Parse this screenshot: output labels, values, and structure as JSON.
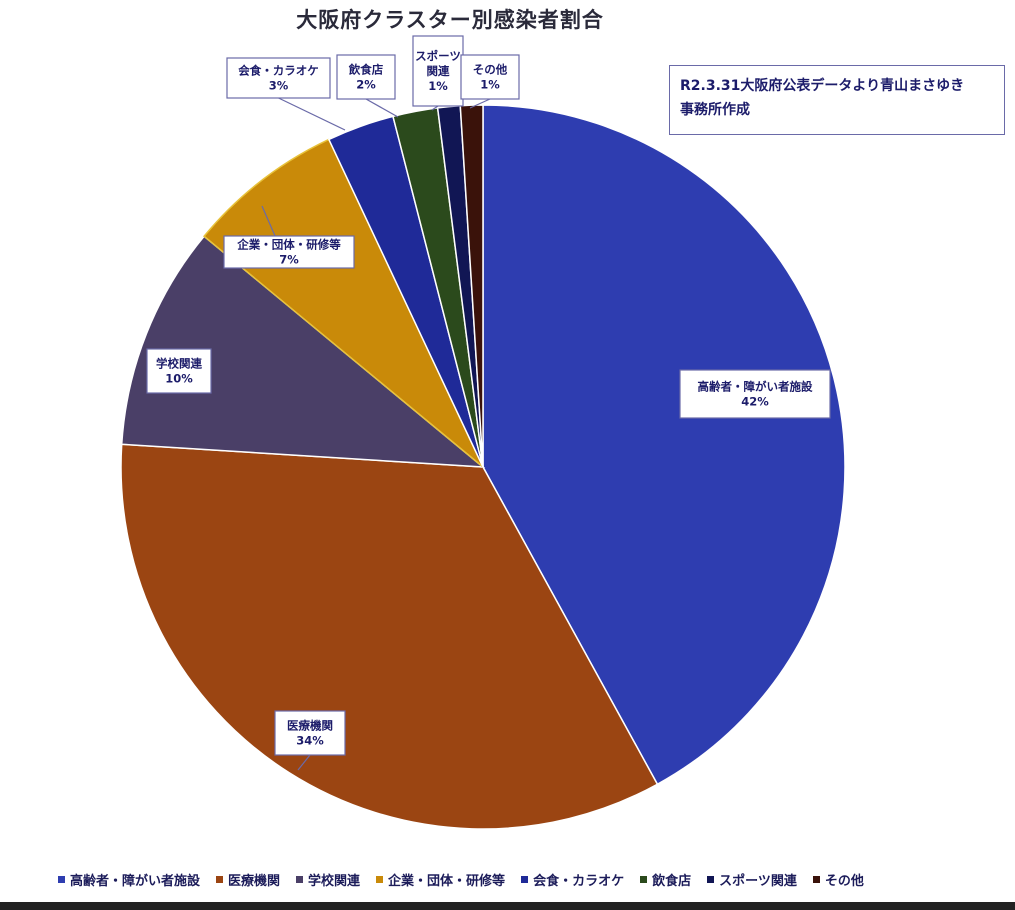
{
  "chart_data": {
    "type": "pie",
    "title": "大阪府クラスター別感染者割合",
    "categories": [
      "高齢者・障がい者施設",
      "医療機関",
      "学校関連",
      "企業・団体・研修等",
      "会食・カラオケ",
      "飲食店",
      "スポーツ関連",
      "その他"
    ],
    "values": [
      42,
      34,
      10,
      7,
      3,
      2,
      1,
      1
    ],
    "value_unit": "%",
    "colors": [
      "#2e3db0",
      "#9b4512",
      "#4a3f67",
      "#c98a09",
      "#1f2a98",
      "#2b4a1c",
      "#111654",
      "#3a120a"
    ],
    "data_labels": [
      {
        "name": "高齢者・障がい者施設",
        "pct": "42%"
      },
      {
        "name": "医療機関",
        "pct": "34%"
      },
      {
        "name": "学校関連",
        "pct": "10%"
      },
      {
        "name": "企業・団体・研修等",
        "pct": "7%"
      },
      {
        "name": "会食・カラオケ",
        "pct": "3%"
      },
      {
        "name": "飲食店",
        "pct": "2%"
      },
      {
        "name": "スポーツ\n関連",
        "pct": "1%"
      },
      {
        "name": "その他",
        "pct": "1%"
      }
    ],
    "legend_position": "bottom",
    "legend": [
      "高齢者・障がい者施設",
      "医療機関",
      "学校関連",
      "企業・団体・研修等",
      "会食・カラオケ",
      "飲食店",
      "スポーツ関連",
      "その他"
    ]
  },
  "source_note": "R2.3.31大阪府公表データより青山まさゆき\n事務所作成"
}
